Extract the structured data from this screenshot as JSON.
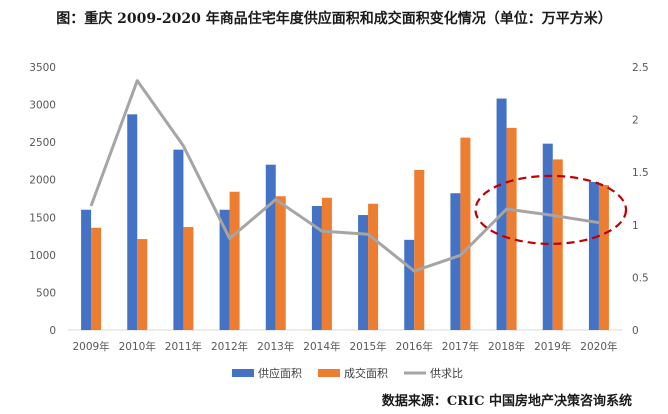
{
  "chart_data": {
    "type": "bar",
    "title": "图：重庆 2009-2020 年商品住宅年度供应面积和成交面积变化情况（单位：万平方米）",
    "categories": [
      "2009年",
      "2010年",
      "2011年",
      "2012年",
      "2013年",
      "2014年",
      "2015年",
      "2016年",
      "2017年",
      "2018年",
      "2019年",
      "2020年"
    ],
    "series": [
      {
        "name": "供应面积",
        "type": "bar",
        "axis": "left",
        "color": "#4472C4",
        "values": [
          1600,
          2870,
          2400,
          1600,
          2200,
          1650,
          1530,
          1200,
          1820,
          3080,
          2480,
          1970
        ]
      },
      {
        "name": "成交面积",
        "type": "bar",
        "axis": "left",
        "color": "#ED7D31",
        "values": [
          1360,
          1210,
          1370,
          1840,
          1780,
          1760,
          1680,
          2130,
          2560,
          2690,
          2270,
          1930
        ]
      },
      {
        "name": "供求比",
        "type": "line",
        "axis": "right",
        "color": "#A5A5A5",
        "values": [
          1.18,
          2.37,
          1.75,
          0.87,
          1.24,
          0.94,
          0.91,
          0.56,
          0.71,
          1.15,
          1.09,
          1.02
        ]
      }
    ],
    "y_left": {
      "min": 0,
      "max": 3500,
      "step": 500,
      "ticks": [
        "0",
        "500",
        "1000",
        "1500",
        "2000",
        "2500",
        "3000",
        "3500"
      ]
    },
    "y_right": {
      "min": 0,
      "max": 2.5,
      "step": 0.5,
      "ticks": [
        "0",
        "0.5",
        "1",
        "1.5",
        "2",
        "2.5"
      ]
    },
    "grid": false,
    "legend_position": "bottom",
    "annotation": {
      "type": "dashed-ellipse",
      "color": "#C00000",
      "categories": [
        "2018年",
        "2019年",
        "2020年"
      ]
    }
  },
  "source_note": "数据来源：CRIC 中国房地产决策咨询系统"
}
